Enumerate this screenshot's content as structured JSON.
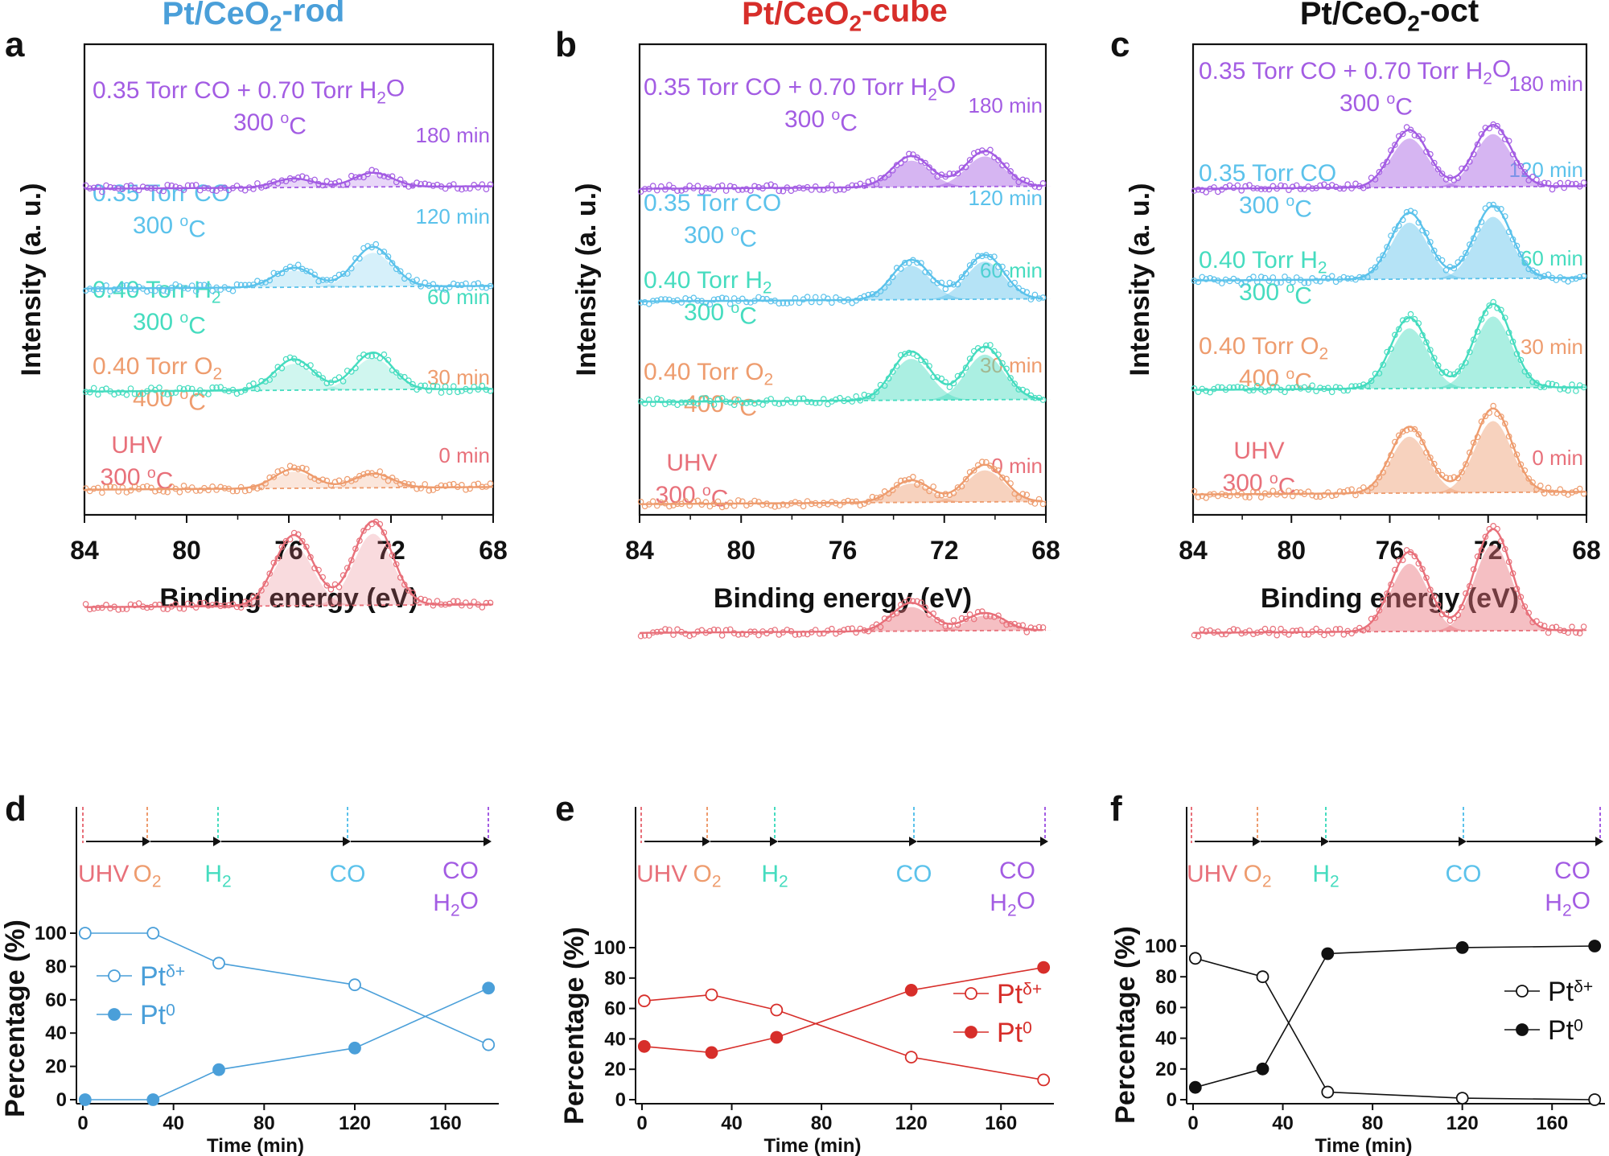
{
  "figure": {
    "colors": {
      "rod": "#4a9fd9",
      "cube": "#d72e2a",
      "oct": "#111111",
      "uhv": "#e8707a",
      "o2": "#ee9c6e",
      "h2": "#45dcbf",
      "co": "#5bc2eb",
      "coh2o": "#a35ce3"
    }
  },
  "chart_data": [
    {
      "panel": "a",
      "type": "line",
      "title": "Pt/CeO2-rod",
      "title_main": "Pt/CeO",
      "title_sub": "2",
      "title_tail": "-rod",
      "xlabel": "Binding energy (eV)",
      "ylabel": "Intensity (a. u.)",
      "xlim": [
        84,
        68
      ],
      "xticks": [
        "84",
        "80",
        "76",
        "72",
        "68"
      ],
      "peak_positions_eV": [
        75.8,
        72.7
      ],
      "series": [
        {
          "condition_line1": "UHV",
          "condition_line2": "300 oC",
          "time": "0 min",
          "color_key": "uhv",
          "baseline": 0.05,
          "peak_heights": [
            0.8,
            0.95
          ]
        },
        {
          "condition_line1": "0.40 Torr O2",
          "condition_line2": "400 oC",
          "time": "30 min",
          "color_key": "o2",
          "baseline": 0.05,
          "peak_heights": [
            0.22,
            0.16
          ]
        },
        {
          "condition_line1": "0.40 Torr H2",
          "condition_line2": "300 oC",
          "time": "60 min",
          "color_key": "h2",
          "baseline": 0.05,
          "peak_heights": [
            0.35,
            0.42
          ]
        },
        {
          "condition_line1": "0.35 Torr CO",
          "condition_line2": "300 oC",
          "time": "120 min",
          "color_key": "co",
          "baseline": 0.05,
          "peak_heights": [
            0.22,
            0.45
          ]
        },
        {
          "condition_line1": "0.35 Torr CO + 0.70 Torr H2O",
          "condition_line2": "300 oC",
          "time": "180 min",
          "color_key": "coh2o",
          "baseline": 0.05,
          "peak_heights": [
            0.1,
            0.16
          ]
        }
      ]
    },
    {
      "panel": "b",
      "type": "line",
      "title": "Pt/CeO2-cube",
      "title_main": "Pt/CeO",
      "title_sub": "2",
      "title_tail": "-cube",
      "xlabel": "Binding energy (eV)",
      "ylabel": "Intensity (a. u.)",
      "xlim": [
        84,
        68
      ],
      "xticks": [
        "84",
        "80",
        "76",
        "72",
        "68"
      ],
      "peak_positions_eV": [
        73.3,
        70.4
      ],
      "series": [
        {
          "condition_line1": "UHV",
          "condition_line2": "300 oC",
          "time": "0 min",
          "color_key": "uhv",
          "baseline": 0.05,
          "peak_heights": [
            0.32,
            0.2
          ]
        },
        {
          "condition_line1": "0.40 Torr O2",
          "condition_line2": "400 oC",
          "time": "30 min",
          "color_key": "o2",
          "baseline": 0.05,
          "peak_heights": [
            0.25,
            0.42
          ]
        },
        {
          "condition_line1": "0.40 Torr H2",
          "condition_line2": "300 oC",
          "time": "60 min",
          "color_key": "h2",
          "baseline": 0.05,
          "peak_heights": [
            0.55,
            0.6
          ]
        },
        {
          "condition_line1": "0.35 Torr CO",
          "condition_line2": "300 oC",
          "time": "120 min",
          "color_key": "co",
          "baseline": 0.05,
          "peak_heights": [
            0.45,
            0.5
          ]
        },
        {
          "condition_line1": "0.35 Torr CO + 0.70 Torr H2O",
          "condition_line2": "300 oC",
          "time": "180 min",
          "color_key": "coh2o",
          "baseline": 0.05,
          "peak_heights": [
            0.35,
            0.4
          ]
        }
      ]
    },
    {
      "panel": "c",
      "type": "line",
      "title": "Pt/CeO2-oct",
      "title_main": "Pt/CeO",
      "title_sub": "2",
      "title_tail": "-oct",
      "xlabel": "Binding energy (eV)",
      "ylabel": "Intensity (a. u.)",
      "xlim": [
        84,
        68
      ],
      "xticks": [
        "84",
        "80",
        "76",
        "72",
        "68"
      ],
      "peak_positions_eV": [
        75.2,
        71.8
      ],
      "series": [
        {
          "condition_line1": "UHV",
          "condition_line2": "300 oC",
          "time": "0 min",
          "color_key": "uhv",
          "baseline": 0.04,
          "peak_heights": [
            0.9,
            1.15
          ]
        },
        {
          "condition_line1": "0.40 Torr O2",
          "condition_line2": "400 oC",
          "time": "30 min",
          "color_key": "o2",
          "baseline": 0.04,
          "peak_heights": [
            0.75,
            0.95
          ]
        },
        {
          "condition_line1": "0.40 Torr H2",
          "condition_line2": "300 oC",
          "time": "60 min",
          "color_key": "h2",
          "baseline": 0.04,
          "peak_heights": [
            0.8,
            0.95
          ]
        },
        {
          "condition_line1": "0.35 Torr CO",
          "condition_line2": "300 oC",
          "time": "120 min",
          "color_key": "co",
          "baseline": 0.04,
          "peak_heights": [
            0.75,
            0.82
          ]
        },
        {
          "condition_line1": "0.35 Torr CO + 0.70 Torr H2O",
          "condition_line2": "300 oC",
          "time": "180 min",
          "color_key": "coh2o",
          "baseline": 0.04,
          "peak_heights": [
            0.65,
            0.7
          ]
        }
      ]
    },
    {
      "panel": "d",
      "type": "line",
      "color_key": "rod",
      "xlabel": "Time (min)",
      "ylabel": "Percentage (%)",
      "xlim": [
        0,
        180
      ],
      "ylim": [
        0,
        100
      ],
      "xticks": [
        "0",
        "40",
        "80",
        "120",
        "160"
      ],
      "yticks": [
        "0",
        "20",
        "40",
        "60",
        "80",
        "100"
      ],
      "stages": [
        "UHV",
        "O2",
        "H2",
        "CO",
        "CO H2O"
      ],
      "x": [
        1,
        31,
        60,
        120,
        179
      ],
      "series": [
        {
          "name": "Ptδ+",
          "marker": "open",
          "values": [
            100,
            100,
            82,
            69,
            33
          ]
        },
        {
          "name": "Pt0",
          "marker": "filled",
          "values": [
            0,
            0,
            18,
            31,
            67
          ]
        }
      ]
    },
    {
      "panel": "e",
      "type": "line",
      "color_key": "cube",
      "xlabel": "Time (min)",
      "ylabel": "Percentage (%)",
      "xlim": [
        0,
        180
      ],
      "ylim": [
        0,
        100
      ],
      "xticks": [
        "0",
        "40",
        "80",
        "120",
        "160"
      ],
      "yticks": [
        "0",
        "20",
        "40",
        "60",
        "80",
        "100"
      ],
      "stages": [
        "UHV",
        "O2",
        "H2",
        "CO",
        "CO H2O"
      ],
      "x": [
        1,
        31,
        60,
        120,
        179
      ],
      "series": [
        {
          "name": "Ptδ+",
          "marker": "open",
          "values": [
            65,
            69,
            59,
            28,
            13
          ]
        },
        {
          "name": "Pt0",
          "marker": "filled",
          "values": [
            35,
            31,
            41,
            72,
            87
          ]
        }
      ]
    },
    {
      "panel": "f",
      "type": "line",
      "color_key": "oct",
      "xlabel": "Time (min)",
      "ylabel": "Percentage (%)",
      "xlim": [
        0,
        180
      ],
      "ylim": [
        0,
        100
      ],
      "xticks": [
        "0",
        "40",
        "80",
        "120",
        "160"
      ],
      "yticks": [
        "0",
        "20",
        "40",
        "60",
        "80",
        "100"
      ],
      "stages": [
        "UHV",
        "O2",
        "H2",
        "CO",
        "CO H2O"
      ],
      "x": [
        1,
        31,
        60,
        120,
        179
      ],
      "series": [
        {
          "name": "Ptδ+",
          "marker": "open",
          "values": [
            92,
            80,
            5,
            1,
            0
          ]
        },
        {
          "name": "Pt0",
          "marker": "filled",
          "values": [
            8,
            20,
            95,
            99,
            100
          ]
        }
      ]
    }
  ]
}
